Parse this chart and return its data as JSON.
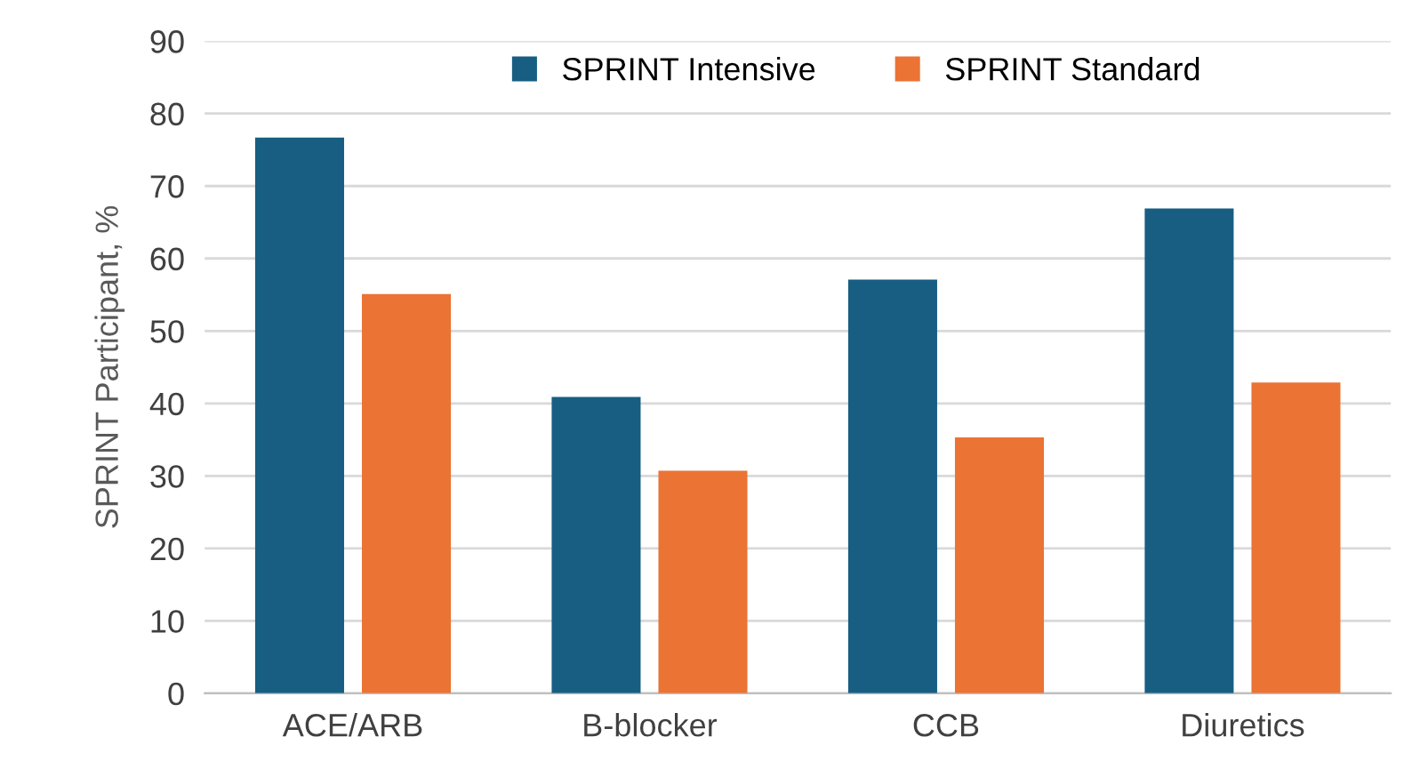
{
  "chart_data": {
    "type": "bar",
    "ylabel": "SPRINT Participant, %",
    "categories": [
      "ACE/ARB",
      "B-blocker",
      "CCB",
      "Diuretics"
    ],
    "series": [
      {
        "name": "SPRINT Intensive",
        "color": "#175e82",
        "values": [
          76.7,
          40.9,
          57.1,
          66.9
        ]
      },
      {
        "name": "SPRINT Standard",
        "color": "#eb7334",
        "values": [
          55.1,
          30.7,
          35.3,
          42.9
        ]
      }
    ],
    "ylim": [
      0,
      90
    ],
    "yticks": [
      0,
      10,
      20,
      30,
      40,
      50,
      60,
      70,
      80,
      90
    ],
    "grid": "y",
    "legend": "top"
  }
}
